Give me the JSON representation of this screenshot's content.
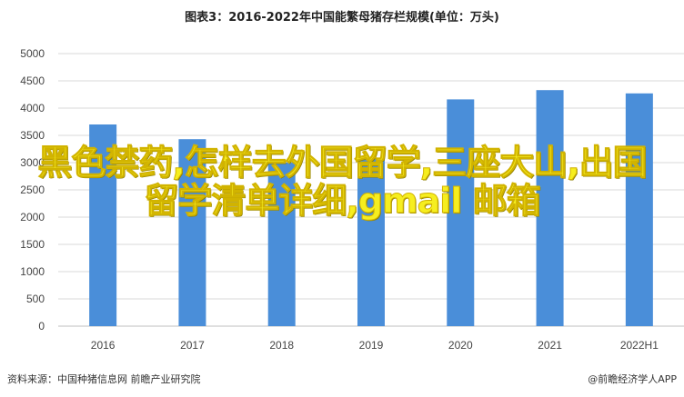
{
  "chart_data": {
    "type": "bar",
    "title": "图表3：2016-2022年中国能繁母猪存栏规模(单位：万头)",
    "categories": [
      "2016",
      "2017",
      "2018",
      "2019",
      "2020",
      "2021",
      "2022H1"
    ],
    "values": [
      3700,
      3430,
      3000,
      3080,
      4160,
      4330,
      4270
    ],
    "ylim": [
      0,
      5000
    ],
    "yticks": [
      0,
      500,
      1000,
      1500,
      2000,
      2500,
      3000,
      3500,
      4000,
      4500,
      5000
    ],
    "xlabel": "",
    "ylabel": "",
    "grid": true,
    "bar_color": "#4a8ed9"
  },
  "overlay": {
    "text": "黑色禁药,怎样去外国留学,三座大山,出国留学清单详细,gmail 邮箱",
    "color": "#f6ee1f"
  },
  "footer": {
    "source": "资料来源：中国种猪信息网 前瞻产业研究院",
    "brand": "@前瞻经济学人APP"
  }
}
